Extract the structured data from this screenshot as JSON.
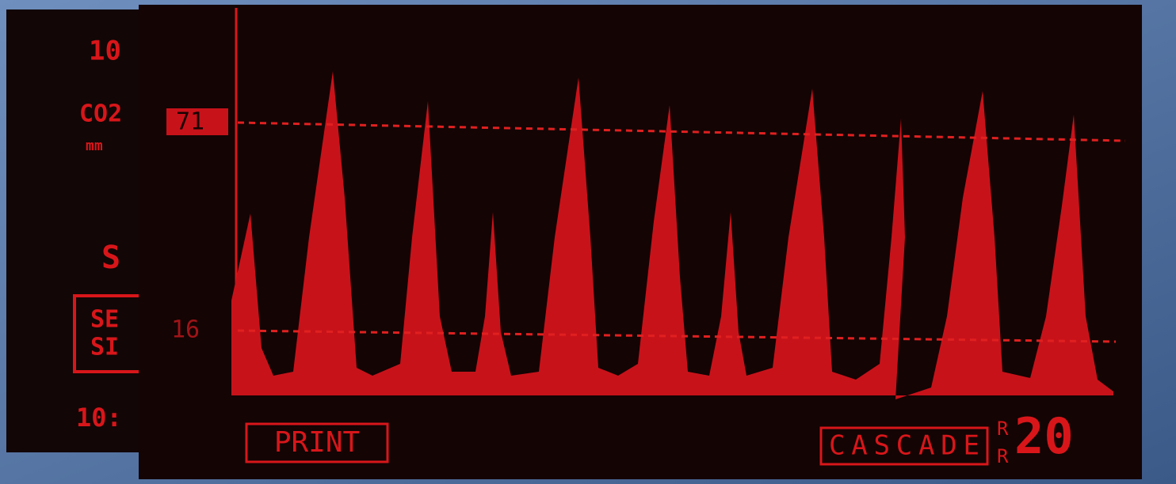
{
  "left_panel": {
    "lines": [
      "10",
      "CO2",
      "mm",
      "S",
      "SE",
      "SI",
      "10:"
    ]
  },
  "screen": {
    "upper_limit": 71,
    "lower_limit": 16,
    "print_button": "PRINT",
    "cascade_button": "CASCADE",
    "rr_label": [
      "R",
      "R"
    ],
    "rr_value": 20
  }
}
